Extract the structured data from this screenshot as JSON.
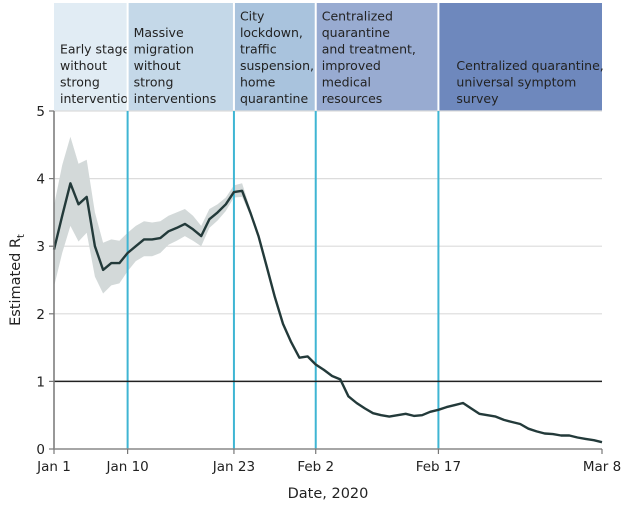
{
  "chart_data": {
    "type": "line",
    "title": "",
    "xlabel": "Date, 2020",
    "ylabel": "Estimated R",
    "ylabel_subscript": "t",
    "x_days_range": [
      0,
      67
    ],
    "ylim": [
      0,
      5
    ],
    "yticks": [
      0,
      1,
      2,
      3,
      4,
      5
    ],
    "grid": "horizontal",
    "reference_line": 1,
    "xticks": [
      {
        "day": 0,
        "label": "Jan 1"
      },
      {
        "day": 9,
        "label": "Jan 10"
      },
      {
        "day": 22,
        "label": "Jan 23"
      },
      {
        "day": 32,
        "label": "Feb 2"
      },
      {
        "day": 47,
        "label": "Feb 17"
      },
      {
        "day": 67,
        "label": "Mar 8"
      }
    ],
    "phase_boundaries": [
      9,
      22,
      32,
      47
    ],
    "phases": [
      {
        "start": 0,
        "end": 9,
        "lines": [
          "Early stage",
          "without",
          "strong",
          "interventions"
        ],
        "color": "#e1ecf4"
      },
      {
        "start": 9,
        "end": 22,
        "lines": [
          "Massive",
          "migration",
          "without",
          "strong",
          "interventions"
        ],
        "color": "#c4d8e8"
      },
      {
        "start": 22,
        "end": 32,
        "lines": [
          "City",
          "lockdown,",
          "traffic",
          "suspension,",
          "home",
          "quarantine"
        ],
        "color": "#a9c3dd"
      },
      {
        "start": 32,
        "end": 47,
        "lines": [
          "Centralized",
          "quarantine",
          "and treatment,",
          "improved",
          "medical",
          "resources"
        ],
        "color": "#98abd1"
      },
      {
        "start": 47,
        "end": 67,
        "lines": [
          "Centralized quarantine,",
          "universal symptom",
          "survey"
        ],
        "color": "#6e88bd"
      }
    ],
    "series": [
      {
        "name": "Estimated Rt",
        "color": "#233a3a",
        "points": [
          [
            0,
            2.95
          ],
          [
            1,
            3.45
          ],
          [
            2,
            3.93
          ],
          [
            3,
            3.62
          ],
          [
            4,
            3.73
          ],
          [
            5,
            3.0
          ],
          [
            6,
            2.65
          ],
          [
            7,
            2.75
          ],
          [
            8,
            2.75
          ],
          [
            9,
            2.9
          ],
          [
            10,
            3.0
          ],
          [
            11,
            3.1
          ],
          [
            12,
            3.1
          ],
          [
            13,
            3.12
          ],
          [
            14,
            3.22
          ],
          [
            15,
            3.27
          ],
          [
            16,
            3.33
          ],
          [
            17,
            3.25
          ],
          [
            18,
            3.15
          ],
          [
            19,
            3.4
          ],
          [
            20,
            3.5
          ],
          [
            21,
            3.62
          ],
          [
            22,
            3.8
          ],
          [
            23,
            3.82
          ],
          [
            24,
            3.5
          ],
          [
            25,
            3.15
          ],
          [
            26,
            2.7
          ],
          [
            27,
            2.25
          ],
          [
            28,
            1.85
          ],
          [
            29,
            1.58
          ],
          [
            30,
            1.35
          ],
          [
            31,
            1.37
          ],
          [
            32,
            1.25
          ],
          [
            33,
            1.17
          ],
          [
            34,
            1.08
          ],
          [
            35,
            1.03
          ],
          [
            36,
            0.78
          ],
          [
            37,
            0.68
          ],
          [
            38,
            0.6
          ],
          [
            39,
            0.53
          ],
          [
            40,
            0.5
          ],
          [
            41,
            0.48
          ],
          [
            42,
            0.5
          ],
          [
            43,
            0.52
          ],
          [
            44,
            0.49
          ],
          [
            45,
            0.5
          ],
          [
            46,
            0.55
          ],
          [
            47,
            0.58
          ],
          [
            48,
            0.62
          ],
          [
            49,
            0.65
          ],
          [
            50,
            0.68
          ],
          [
            51,
            0.6
          ],
          [
            52,
            0.52
          ],
          [
            53,
            0.5
          ],
          [
            54,
            0.48
          ],
          [
            55,
            0.43
          ],
          [
            56,
            0.4
          ],
          [
            57,
            0.37
          ],
          [
            58,
            0.3
          ],
          [
            59,
            0.26
          ],
          [
            60,
            0.23
          ],
          [
            61,
            0.22
          ],
          [
            62,
            0.2
          ],
          [
            63,
            0.2
          ],
          [
            64,
            0.17
          ],
          [
            65,
            0.15
          ],
          [
            66,
            0.13
          ],
          [
            67,
            0.1
          ]
        ]
      }
    ],
    "confidence_band": {
      "color": "#d3d9d9",
      "upper": [
        [
          0,
          3.6
        ],
        [
          1,
          4.2
        ],
        [
          2,
          4.62
        ],
        [
          3,
          4.22
        ],
        [
          4,
          4.28
        ],
        [
          5,
          3.5
        ],
        [
          6,
          3.05
        ],
        [
          7,
          3.1
        ],
        [
          8,
          3.08
        ],
        [
          9,
          3.2
        ],
        [
          10,
          3.3
        ],
        [
          11,
          3.37
        ],
        [
          12,
          3.35
        ],
        [
          13,
          3.37
        ],
        [
          14,
          3.45
        ],
        [
          15,
          3.5
        ],
        [
          16,
          3.55
        ],
        [
          17,
          3.45
        ],
        [
          18,
          3.3
        ],
        [
          19,
          3.55
        ],
        [
          20,
          3.62
        ],
        [
          21,
          3.72
        ],
        [
          22,
          3.9
        ],
        [
          23,
          3.93
        ],
        [
          24,
          3.55
        ]
      ],
      "lower": [
        [
          0,
          2.4
        ],
        [
          1,
          2.9
        ],
        [
          2,
          3.3
        ],
        [
          3,
          3.07
        ],
        [
          4,
          3.2
        ],
        [
          5,
          2.55
        ],
        [
          6,
          2.3
        ],
        [
          7,
          2.42
        ],
        [
          8,
          2.45
        ],
        [
          9,
          2.63
        ],
        [
          10,
          2.78
        ],
        [
          11,
          2.85
        ],
        [
          12,
          2.85
        ],
        [
          13,
          2.9
        ],
        [
          14,
          3.02
        ],
        [
          15,
          3.08
        ],
        [
          16,
          3.15
        ],
        [
          17,
          3.08
        ],
        [
          18,
          3.0
        ],
        [
          19,
          3.27
        ],
        [
          20,
          3.38
        ],
        [
          21,
          3.52
        ],
        [
          22,
          3.72
        ],
        [
          23,
          3.73
        ],
        [
          24,
          3.45
        ]
      ]
    }
  }
}
